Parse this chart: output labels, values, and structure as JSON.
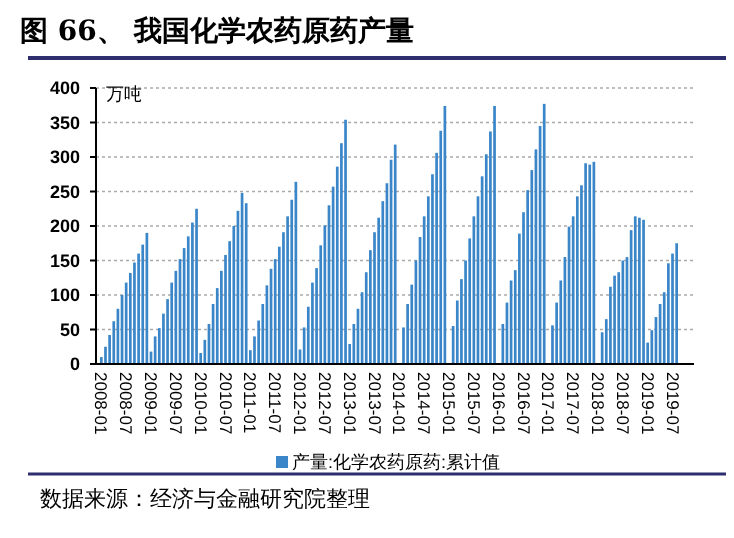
{
  "chart_data": {
    "type": "bar",
    "title": "图 66、 我国化学农药原药产量",
    "ylabel": "万吨",
    "categories": [
      "2008-01",
      null,
      null,
      null,
      null,
      null,
      "2008-07",
      null,
      null,
      null,
      null,
      null,
      "2009-01",
      null,
      null,
      null,
      null,
      null,
      "2009-07",
      null,
      null,
      null,
      null,
      null,
      "2010-01",
      null,
      null,
      null,
      null,
      null,
      "2010-07",
      null,
      null,
      null,
      null,
      null,
      "2011-01",
      null,
      null,
      null,
      null,
      null,
      "2011-07",
      null,
      null,
      null,
      null,
      null,
      "2012-01",
      null,
      null,
      null,
      null,
      null,
      "2012-07",
      null,
      null,
      null,
      null,
      null,
      "2013-01",
      null,
      null,
      null,
      null,
      null,
      "2013-07",
      null,
      null,
      null,
      null,
      null,
      "2014-01",
      null,
      null,
      null,
      null,
      null,
      "2014-07",
      null,
      null,
      null,
      null,
      null,
      "2015-01",
      null,
      null,
      null,
      null,
      null,
      "2015-07",
      null,
      null,
      null,
      null,
      null,
      "2016-01",
      null,
      null,
      null,
      null,
      null,
      "2016-07",
      null,
      null,
      null,
      null,
      null,
      "2017-01",
      null,
      null,
      null,
      null,
      null,
      "2017-07",
      null,
      null,
      null,
      null,
      null,
      "2018-01",
      null,
      null,
      null,
      null,
      null,
      "2018-07",
      null,
      null,
      null,
      null,
      null,
      "2019-01",
      null,
      null,
      null,
      null,
      null,
      "2019-07",
      null
    ],
    "series": [
      {
        "name": "产量:化学农药原药:累计值",
        "color": "#3a86c8",
        "values": [
          10,
          25,
          42,
          62,
          80,
          100,
          118,
          132,
          147,
          160,
          173,
          190,
          18,
          40,
          52,
          73,
          94,
          118,
          135,
          152,
          168,
          185,
          205,
          225,
          16,
          35,
          58,
          87,
          110,
          135,
          158,
          178,
          200,
          222,
          248,
          233,
          20,
          40,
          63,
          87,
          114,
          138,
          152,
          170,
          191,
          214,
          238,
          264,
          21,
          53,
          83,
          118,
          139,
          172,
          201,
          230,
          257,
          286,
          320,
          354,
          29,
          58,
          80,
          104,
          133,
          165,
          191,
          212,
          236,
          262,
          296,
          318,
          null,
          53,
          87,
          115,
          150,
          184,
          214,
          243,
          275,
          306,
          338,
          374,
          null,
          55,
          92,
          123,
          150,
          182,
          214,
          243,
          272,
          304,
          337,
          374,
          null,
          58,
          89,
          121,
          136,
          189,
          220,
          252,
          281,
          311,
          345,
          377,
          null,
          56,
          89,
          121,
          155,
          199,
          214,
          243,
          259,
          291,
          289,
          293,
          null,
          46,
          65,
          112,
          128,
          133,
          150,
          155,
          194,
          214,
          212,
          209,
          31,
          49,
          68,
          87,
          104,
          146,
          160,
          175
        ]
      }
    ],
    "ylim": [
      0,
      400
    ],
    "yticks": [
      0,
      50,
      100,
      150,
      200,
      250,
      300,
      350,
      400
    ],
    "grid": "y",
    "legend": "bottom",
    "annotations": [
      "数据来源：经济与金融研究院整理"
    ]
  }
}
